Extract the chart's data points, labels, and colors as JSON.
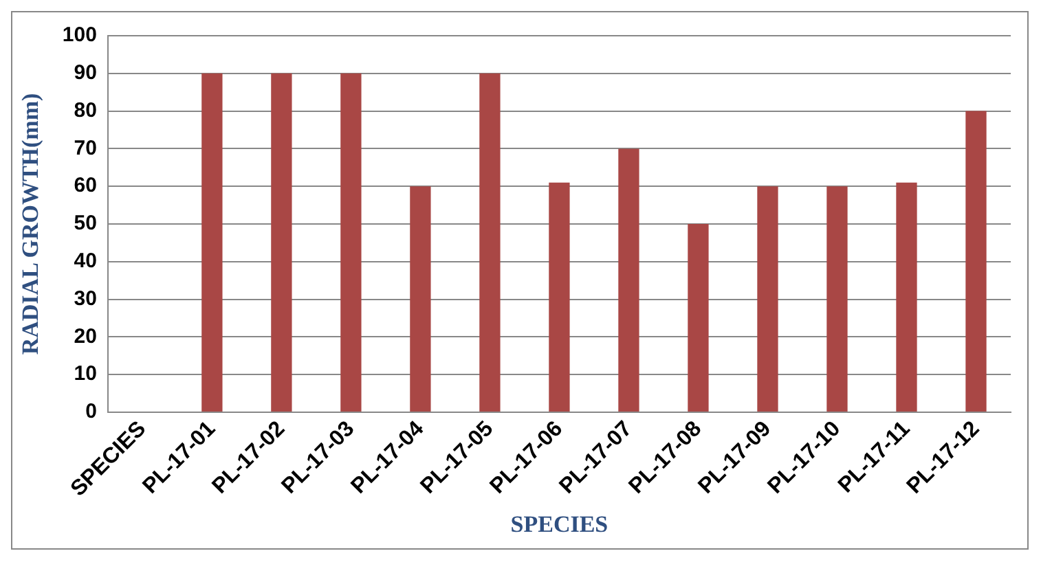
{
  "chart_data": {
    "type": "bar",
    "xlabel": "SPECIES",
    "ylabel": "RADIAL GROWTH(mm)",
    "categories": [
      "SPECIES",
      "PL-17-01",
      "PL-17-02",
      "PL-17-03",
      "PL-17-04",
      "PL-17-05",
      "PL-17-06",
      "PL-17-07",
      "PL-17-08",
      "PL-17-09",
      "PL-17-10",
      "PL-17-11",
      "PL-17-12"
    ],
    "values": [
      null,
      90,
      90,
      90,
      60,
      90,
      61,
      70,
      50,
      60,
      60,
      61,
      80
    ],
    "color": "#a94745",
    "ylim": [
      0,
      100
    ],
    "yticks": [
      0,
      10,
      20,
      30,
      40,
      50,
      60,
      70,
      80,
      90,
      100
    ],
    "grid": "y",
    "legend": false
  }
}
